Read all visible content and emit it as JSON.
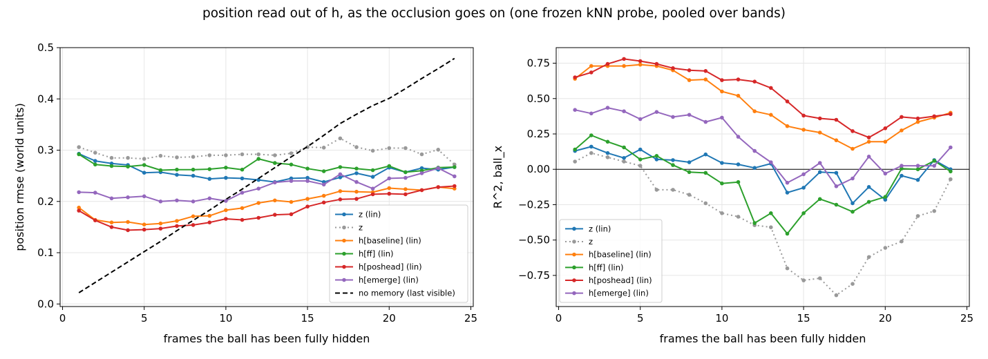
{
  "suptitle": "position read out of h, as the occlusion goes on (one frozen kNN probe, pooled over bands)",
  "chart_data": [
    {
      "type": "line",
      "xlabel": "frames the ball has been fully hidden",
      "ylabel": "position rmse (world units)",
      "xlim": [
        -0.15,
        25.15
      ],
      "ylim": [
        -0.005,
        0.5
      ],
      "xticks": [
        0,
        5,
        10,
        15,
        20,
        25
      ],
      "yticks": [
        0.0,
        0.1,
        0.2,
        0.3,
        0.4,
        0.5
      ],
      "ytick_labels": [
        "0.0",
        "0.1",
        "0.2",
        "0.3",
        "0.4",
        "0.5"
      ],
      "grid": true,
      "legend_position": "lower-right",
      "series": [
        {
          "name": "z (lin)",
          "color": "#1f77b4",
          "style": "solid",
          "marker": true,
          "x": [
            1,
            2,
            3,
            4,
            5,
            6,
            7,
            8,
            9,
            10,
            11,
            12,
            13,
            14,
            15,
            16,
            17,
            18,
            19,
            20,
            21,
            22,
            23,
            24
          ],
          "values": [
            0.293,
            0.279,
            0.274,
            0.271,
            0.256,
            0.257,
            0.252,
            0.25,
            0.244,
            0.246,
            0.245,
            0.242,
            0.238,
            0.245,
            0.246,
            0.238,
            0.247,
            0.255,
            0.248,
            0.266,
            0.257,
            0.265,
            0.262,
            0.267
          ]
        },
        {
          "name": "z",
          "color": "#999999",
          "style": "dotted",
          "marker": true,
          "x": [
            1,
            2,
            3,
            4,
            5,
            6,
            7,
            8,
            9,
            10,
            11,
            12,
            13,
            14,
            15,
            16,
            17,
            18,
            19,
            20,
            21,
            22,
            23,
            24
          ],
          "values": [
            0.306,
            0.295,
            0.285,
            0.285,
            0.283,
            0.289,
            0.286,
            0.287,
            0.29,
            0.29,
            0.292,
            0.292,
            0.29,
            0.294,
            0.306,
            0.305,
            0.323,
            0.306,
            0.299,
            0.304,
            0.304,
            0.292,
            0.301,
            0.272
          ]
        },
        {
          "name": "h[baseline] (lin)",
          "color": "#ff7f0e",
          "style": "solid",
          "marker": true,
          "x": [
            1,
            2,
            3,
            4,
            5,
            6,
            7,
            8,
            9,
            10,
            11,
            12,
            13,
            14,
            15,
            16,
            17,
            18,
            19,
            20,
            21,
            22,
            23,
            24
          ],
          "values": [
            0.188,
            0.164,
            0.159,
            0.16,
            0.155,
            0.157,
            0.162,
            0.171,
            0.172,
            0.183,
            0.187,
            0.197,
            0.202,
            0.199,
            0.205,
            0.211,
            0.22,
            0.219,
            0.218,
            0.226,
            0.224,
            0.222,
            0.228,
            0.225
          ]
        },
        {
          "name": "h[ff] (lin)",
          "color": "#2ca02c",
          "style": "solid",
          "marker": true,
          "x": [
            1,
            2,
            3,
            4,
            5,
            6,
            7,
            8,
            9,
            10,
            11,
            12,
            13,
            14,
            15,
            16,
            17,
            18,
            19,
            20,
            21,
            22,
            23,
            24
          ],
          "values": [
            0.292,
            0.272,
            0.269,
            0.268,
            0.271,
            0.261,
            0.262,
            0.262,
            0.263,
            0.266,
            0.262,
            0.283,
            0.275,
            0.272,
            0.264,
            0.259,
            0.267,
            0.264,
            0.261,
            0.269,
            0.257,
            0.26,
            0.266,
            0.267
          ]
        },
        {
          "name": "h[poshead] (lin)",
          "color": "#d62728",
          "style": "solid",
          "marker": true,
          "x": [
            1,
            2,
            3,
            4,
            5,
            6,
            7,
            8,
            9,
            10,
            11,
            12,
            13,
            14,
            15,
            16,
            17,
            18,
            19,
            20,
            21,
            22,
            23,
            24
          ],
          "values": [
            0.182,
            0.163,
            0.15,
            0.144,
            0.145,
            0.147,
            0.152,
            0.154,
            0.159,
            0.166,
            0.164,
            0.168,
            0.174,
            0.175,
            0.19,
            0.198,
            0.204,
            0.205,
            0.214,
            0.215,
            0.214,
            0.222,
            0.228,
            0.23
          ]
        },
        {
          "name": "h[emerge] (lin)",
          "color": "#9467bd",
          "style": "solid",
          "marker": true,
          "x": [
            1,
            2,
            3,
            4,
            5,
            6,
            7,
            8,
            9,
            10,
            11,
            12,
            13,
            14,
            15,
            16,
            17,
            18,
            19,
            20,
            21,
            22,
            23,
            24
          ],
          "values": [
            0.218,
            0.217,
            0.206,
            0.208,
            0.21,
            0.2,
            0.202,
            0.2,
            0.206,
            0.201,
            0.217,
            0.225,
            0.237,
            0.24,
            0.24,
            0.233,
            0.253,
            0.238,
            0.225,
            0.245,
            0.246,
            0.255,
            0.265,
            0.249
          ]
        },
        {
          "name": "no memory (last visible)",
          "color": "#000000",
          "style": "dashed",
          "marker": false,
          "x": [
            1,
            2,
            3,
            4,
            5,
            6,
            7,
            8,
            9,
            10,
            11,
            12,
            13,
            14,
            15,
            16,
            17,
            18,
            19,
            20,
            21,
            22,
            23,
            24
          ],
          "values": [
            0.022,
            0.042,
            0.062,
            0.082,
            0.102,
            0.122,
            0.143,
            0.163,
            0.183,
            0.204,
            0.224,
            0.245,
            0.266,
            0.287,
            0.307,
            0.329,
            0.352,
            0.37,
            0.387,
            0.401,
            0.42,
            0.44,
            0.459,
            0.479
          ]
        }
      ]
    },
    {
      "type": "line",
      "xlabel": "frames the ball has been fully hidden",
      "ylabel": "R^2, ball_x",
      "xlim": [
        -0.15,
        25.15
      ],
      "ylim": [
        -0.97,
        0.86
      ],
      "xticks": [
        0,
        5,
        10,
        15,
        20,
        25
      ],
      "yticks": [
        0.75,
        0.5,
        0.25,
        0.0,
        -0.25,
        -0.5,
        -0.75
      ],
      "ytick_labels": [
        "0.75",
        "0.50",
        "0.25",
        "0.00",
        "−0.25",
        "−0.50",
        "−0.75"
      ],
      "grid": true,
      "zero_line": true,
      "legend_position": "lower-left",
      "series": [
        {
          "name": "z (lin)",
          "color": "#1f77b4",
          "style": "solid",
          "marker": true,
          "x": [
            1,
            2,
            3,
            4,
            5,
            6,
            7,
            8,
            9,
            10,
            11,
            12,
            13,
            14,
            15,
            16,
            17,
            18,
            19,
            20,
            21,
            22,
            23,
            24
          ],
          "values": [
            0.13,
            0.16,
            0.115,
            0.08,
            0.14,
            0.07,
            0.065,
            0.05,
            0.105,
            0.045,
            0.035,
            0.01,
            0.04,
            -0.165,
            -0.13,
            -0.02,
            -0.025,
            -0.24,
            -0.125,
            -0.215,
            -0.045,
            -0.075,
            0.065,
            0.0
          ]
        },
        {
          "name": "z",
          "color": "#999999",
          "style": "dotted",
          "marker": true,
          "x": [
            1,
            2,
            3,
            4,
            5,
            6,
            7,
            8,
            9,
            10,
            11,
            12,
            13,
            14,
            15,
            16,
            17,
            18,
            19,
            20,
            21,
            22,
            23,
            24
          ],
          "values": [
            0.055,
            0.115,
            0.085,
            0.055,
            0.025,
            -0.145,
            -0.145,
            -0.18,
            -0.24,
            -0.31,
            -0.335,
            -0.395,
            -0.41,
            -0.7,
            -0.785,
            -0.77,
            -0.89,
            -0.81,
            -0.62,
            -0.555,
            -0.51,
            -0.33,
            -0.295,
            -0.07
          ]
        },
        {
          "name": "h[baseline] (lin)",
          "color": "#ff7f0e",
          "style": "solid",
          "marker": true,
          "x": [
            1,
            2,
            3,
            4,
            5,
            6,
            7,
            8,
            9,
            10,
            11,
            12,
            13,
            14,
            15,
            16,
            17,
            18,
            19,
            20,
            21,
            22,
            23,
            24
          ],
          "values": [
            0.64,
            0.73,
            0.73,
            0.73,
            0.74,
            0.73,
            0.7,
            0.63,
            0.635,
            0.55,
            0.52,
            0.41,
            0.385,
            0.305,
            0.28,
            0.26,
            0.205,
            0.145,
            0.195,
            0.195,
            0.275,
            0.335,
            0.365,
            0.4
          ]
        },
        {
          "name": "h[ff] (lin)",
          "color": "#2ca02c",
          "style": "solid",
          "marker": true,
          "x": [
            1,
            2,
            3,
            4,
            5,
            6,
            7,
            8,
            9,
            10,
            11,
            12,
            13,
            14,
            15,
            16,
            17,
            18,
            19,
            20,
            21,
            22,
            23,
            24
          ],
          "values": [
            0.14,
            0.24,
            0.195,
            0.155,
            0.07,
            0.095,
            0.03,
            -0.02,
            -0.025,
            -0.1,
            -0.09,
            -0.38,
            -0.31,
            -0.455,
            -0.31,
            -0.21,
            -0.25,
            -0.3,
            -0.23,
            -0.195,
            0.005,
            0.0,
            0.06,
            -0.015
          ]
        },
        {
          "name": "h[poshead] (lin)",
          "color": "#d62728",
          "style": "solid",
          "marker": true,
          "x": [
            1,
            2,
            3,
            4,
            5,
            6,
            7,
            8,
            9,
            10,
            11,
            12,
            13,
            14,
            15,
            16,
            17,
            18,
            19,
            20,
            21,
            22,
            23,
            24
          ],
          "values": [
            0.65,
            0.685,
            0.745,
            0.78,
            0.765,
            0.745,
            0.715,
            0.7,
            0.695,
            0.63,
            0.635,
            0.62,
            0.575,
            0.48,
            0.38,
            0.36,
            0.35,
            0.27,
            0.225,
            0.29,
            0.37,
            0.36,
            0.375,
            0.39
          ]
        },
        {
          "name": "h[emerge] (lin)",
          "color": "#9467bd",
          "style": "solid",
          "marker": true,
          "x": [
            1,
            2,
            3,
            4,
            5,
            6,
            7,
            8,
            9,
            10,
            11,
            12,
            13,
            14,
            15,
            16,
            17,
            18,
            19,
            20,
            21,
            22,
            23,
            24
          ],
          "values": [
            0.42,
            0.395,
            0.435,
            0.41,
            0.355,
            0.405,
            0.37,
            0.385,
            0.335,
            0.365,
            0.23,
            0.13,
            0.05,
            -0.095,
            -0.035,
            0.045,
            -0.12,
            -0.065,
            0.09,
            -0.03,
            0.025,
            0.025,
            0.025,
            0.155
          ]
        }
      ]
    }
  ]
}
